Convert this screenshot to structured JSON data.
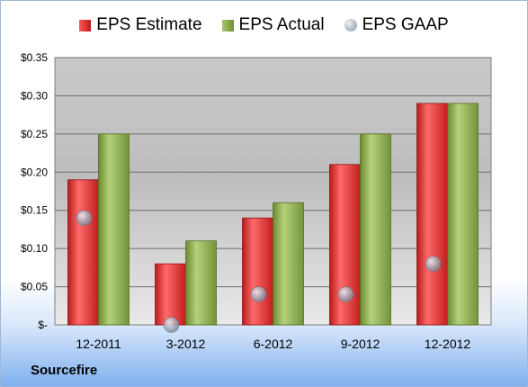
{
  "chart_data": {
    "type": "bar",
    "categories": [
      "12-2011",
      "3-2012",
      "6-2012",
      "9-2012",
      "12-2012"
    ],
    "series": [
      {
        "name": "EPS Estimate",
        "values": [
          0.19,
          0.08,
          0.14,
          0.21,
          0.29
        ]
      },
      {
        "name": "EPS Actual",
        "values": [
          0.25,
          0.11,
          0.16,
          0.25,
          0.29
        ]
      },
      {
        "name": "EPS GAAP",
        "values": [
          0.14,
          0.0,
          0.04,
          0.04,
          0.08
        ]
      }
    ],
    "ylim": [
      0,
      0.35
    ],
    "yticks": [
      0,
      0.05,
      0.1,
      0.15,
      0.2,
      0.25,
      0.3,
      0.35
    ],
    "ytick_labels": [
      "$-",
      "$0.05",
      "$0.10",
      "$0.15",
      "$0.20",
      "$0.25",
      "$0.30",
      "$0.35"
    ],
    "grid": true,
    "legend_position": "top",
    "colors": {
      "estimate": "#d42a2a",
      "actual": "#8aa84b",
      "gaap": "#a7b0bd"
    }
  },
  "source_label": "Sourcefire"
}
